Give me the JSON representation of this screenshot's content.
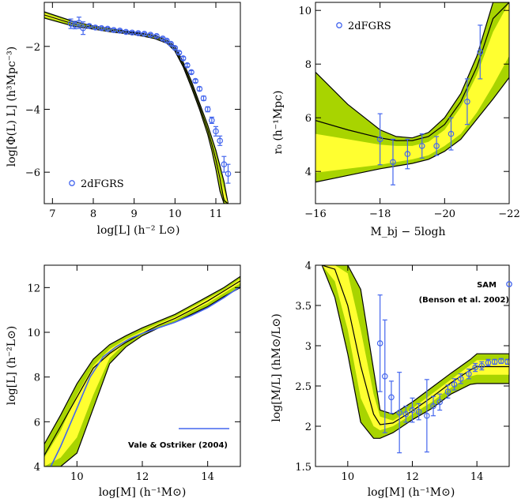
{
  "colors": {
    "outer_band": "#a8d400",
    "inner_band": "#ffff30",
    "line": "#000000",
    "data": "#4466ee"
  },
  "chart_data": [
    {
      "type": "line",
      "id": "lf",
      "title": "",
      "xlabel": "log[L]  (h⁻² L⊙)",
      "ylabel": "log[Φ(L) L]  (h³Mpc⁻³)",
      "xlim": [
        6.8,
        11.6
      ],
      "ylim": [
        -7.0,
        -0.6
      ],
      "xticks": [
        7,
        8,
        9,
        10,
        11
      ],
      "yticks": [
        -6,
        -4,
        -2
      ],
      "legend": {
        "label": "2dFGRS",
        "position": "bottom-left"
      },
      "band_x": [
        6.8,
        7.5,
        8.0,
        8.5,
        9.0,
        9.5,
        9.8,
        10.0,
        10.2,
        10.4,
        10.6,
        10.8,
        10.9,
        11.0,
        11.1,
        11.2,
        11.3
      ],
      "band_outer_upper": [
        -0.9,
        -1.2,
        -1.35,
        -1.45,
        -1.55,
        -1.65,
        -1.8,
        -2.0,
        -2.5,
        -3.1,
        -3.8,
        -4.5,
        -4.9,
        -5.3,
        -5.8,
        -6.3,
        -7.0
      ],
      "band_outer_lower": [
        -1.1,
        -1.35,
        -1.45,
        -1.55,
        -1.62,
        -1.75,
        -1.9,
        -2.15,
        -2.65,
        -3.3,
        -4.0,
        -4.8,
        -5.3,
        -5.9,
        -6.6,
        -7.0,
        -7.0
      ],
      "band_inner_upper": [
        -0.95,
        -1.25,
        -1.38,
        -1.48,
        -1.57,
        -1.68,
        -1.83,
        -2.05,
        -2.55,
        -3.17,
        -3.87,
        -4.6,
        -5.03,
        -5.5,
        -6.07,
        -6.57,
        -7.0
      ],
      "band_inner_lower": [
        -1.05,
        -1.3,
        -1.42,
        -1.52,
        -1.6,
        -1.72,
        -1.87,
        -2.1,
        -2.6,
        -3.23,
        -3.93,
        -4.7,
        -5.17,
        -5.7,
        -6.33,
        -6.8,
        -7.0
      ],
      "model": [
        -1.0,
        -1.28,
        -1.4,
        -1.5,
        -1.58,
        -1.7,
        -1.85,
        -2.08,
        -2.58,
        -3.2,
        -3.9,
        -4.65,
        -5.1,
        -5.6,
        -6.2,
        -6.9,
        -7.0
      ],
      "data_x": [
        7.45,
        7.55,
        7.65,
        7.75,
        7.9,
        8.05,
        8.2,
        8.35,
        8.5,
        8.65,
        8.8,
        8.95,
        9.1,
        9.25,
        9.4,
        9.55,
        9.7,
        9.8,
        9.9,
        10.0,
        10.1,
        10.2,
        10.3,
        10.4,
        10.5,
        10.6,
        10.7,
        10.8,
        10.9,
        11.0,
        11.1,
        11.2,
        11.3
      ],
      "data_y": [
        -1.28,
        -1.32,
        -1.25,
        -1.42,
        -1.35,
        -1.4,
        -1.42,
        -1.44,
        -1.48,
        -1.5,
        -1.54,
        -1.56,
        -1.58,
        -1.6,
        -1.63,
        -1.67,
        -1.75,
        -1.82,
        -1.92,
        -2.05,
        -2.2,
        -2.38,
        -2.6,
        -2.82,
        -3.1,
        -3.35,
        -3.65,
        -4.0,
        -4.35,
        -4.7,
        -5.0,
        -5.75,
        -6.05
      ],
      "data_err": [
        0.15,
        0.12,
        0.18,
        0.2,
        0.05,
        0.05,
        0.04,
        0.04,
        0.04,
        0.04,
        0.04,
        0.04,
        0.04,
        0.04,
        0.04,
        0.04,
        0.04,
        0.04,
        0.04,
        0.04,
        0.04,
        0.05,
        0.05,
        0.05,
        0.05,
        0.06,
        0.07,
        0.08,
        0.1,
        0.15,
        0.15,
        0.25,
        0.3
      ]
    },
    {
      "type": "line",
      "id": "r0",
      "title": "",
      "xlabel": "M_bj − 5logh",
      "ylabel": "r₀  (h⁻¹Mpc)",
      "xlim": [
        -16,
        -22
      ],
      "ylim": [
        2.8,
        10.3
      ],
      "xticks": [
        -16,
        -18,
        -20,
        -22
      ],
      "yticks": [
        4,
        6,
        8,
        10
      ],
      "legend": {
        "label": "2dFGRS",
        "position": "top-left"
      },
      "band_x": [
        -16,
        -17,
        -18,
        -18.5,
        -19,
        -19.5,
        -20,
        -20.5,
        -21,
        -21.5,
        -22
      ],
      "band_outer_upper": [
        7.7,
        6.5,
        5.55,
        5.3,
        5.25,
        5.45,
        6.0,
        6.9,
        8.3,
        10.3,
        10.3
      ],
      "band_outer_lower": [
        3.6,
        3.85,
        4.1,
        4.2,
        4.3,
        4.45,
        4.75,
        5.2,
        5.95,
        6.7,
        7.5
      ],
      "band_inner_upper": [
        5.4,
        5.2,
        5.0,
        4.95,
        4.95,
        5.1,
        5.55,
        6.4,
        7.6,
        9.2,
        10.3
      ],
      "band_inner_lower": [
        3.95,
        4.1,
        4.25,
        4.35,
        4.45,
        4.6,
        4.95,
        5.4,
        6.2,
        7.2,
        8.3
      ],
      "model": [
        5.9,
        5.55,
        5.25,
        5.15,
        5.15,
        5.3,
        5.75,
        6.6,
        7.9,
        9.7,
        10.3
      ],
      "data_x": [
        -18.0,
        -18.4,
        -18.85,
        -19.3,
        -19.75,
        -20.2,
        -20.7,
        -21.1
      ],
      "data_y": [
        5.2,
        4.35,
        4.65,
        4.95,
        4.95,
        5.4,
        6.6,
        8.45
      ],
      "data_err": [
        0.95,
        0.85,
        0.55,
        0.45,
        0.35,
        0.6,
        0.85,
        1.0
      ]
    },
    {
      "type": "line",
      "id": "lm",
      "title": "",
      "xlabel": "log[M]  (h⁻¹M⊙)",
      "ylabel": "log[L]  (h⁻²L⊙)",
      "xlim": [
        9,
        15
      ],
      "ylim": [
        4,
        13
      ],
      "xticks": [
        10,
        12,
        14
      ],
      "yticks": [
        4,
        6,
        8,
        10,
        12
      ],
      "legend": {
        "label": "Vale & Ostriker (2004)",
        "position": "bottom-right"
      },
      "band_x": [
        9,
        9.5,
        10.0,
        10.5,
        11,
        11.5,
        12,
        12.5,
        13,
        13.5,
        14,
        14.5,
        15
      ],
      "band_outer_upper": [
        5.0,
        6.3,
        7.7,
        8.8,
        9.45,
        9.85,
        10.2,
        10.5,
        10.8,
        11.2,
        11.6,
        12.0,
        12.5
      ],
      "band_outer_lower": [
        4.0,
        4.0,
        4.6,
        6.6,
        8.6,
        9.35,
        9.85,
        10.2,
        10.45,
        10.8,
        11.15,
        11.6,
        12.0
      ],
      "band_inner_upper": [
        4.4,
        5.6,
        7.2,
        8.5,
        9.25,
        9.7,
        10.05,
        10.4,
        10.7,
        11.1,
        11.5,
        11.9,
        12.4
      ],
      "band_inner_lower": [
        4.0,
        4.4,
        5.3,
        7.2,
        8.85,
        9.55,
        9.95,
        10.3,
        10.55,
        10.95,
        11.3,
        11.75,
        12.2
      ],
      "model": [
        4.5,
        5.8,
        7.1,
        8.4,
        9.05,
        9.55,
        9.95,
        10.32,
        10.62,
        11.0,
        11.4,
        11.85,
        12.3
      ],
      "ref_x": [
        9.2,
        9.5,
        10.0,
        10.4,
        10.8,
        11.2,
        11.6,
        12.0,
        12.5,
        13.0,
        13.5,
        14.0,
        14.5,
        15.0
      ],
      "ref_y": [
        4.0,
        4.9,
        6.6,
        8.0,
        8.9,
        9.35,
        9.7,
        9.95,
        10.2,
        10.45,
        10.75,
        11.1,
        11.55,
        12.05
      ]
    },
    {
      "type": "line",
      "id": "ml",
      "title": "",
      "xlabel": "log[M]  (h⁻¹M⊙)",
      "ylabel": "log[M/L]  (hM⊙/L⊙)",
      "xlim": [
        9,
        15
      ],
      "ylim": [
        1.5,
        4.0
      ],
      "xticks": [
        10,
        12,
        14
      ],
      "yticks": [
        1.5,
        2,
        2.5,
        3,
        3.5,
        4
      ],
      "legend": {
        "label": "SAM",
        "sublabel": "(Benson et al. 2002)",
        "position": "top-right"
      },
      "band_x": [
        9.2,
        9.6,
        10.0,
        10.4,
        10.8,
        11.0,
        11.4,
        12.0,
        12.6,
        13.2,
        13.8,
        14.0,
        14.5,
        15.0
      ],
      "band_outer_upper": [
        4.0,
        4.0,
        4.0,
        3.7,
        2.7,
        2.2,
        2.15,
        2.3,
        2.48,
        2.66,
        2.83,
        2.9,
        2.9,
        2.9
      ],
      "band_outer_lower": [
        4.0,
        3.6,
        2.9,
        2.05,
        1.85,
        1.85,
        1.92,
        2.08,
        2.22,
        2.4,
        2.52,
        2.53,
        2.53,
        2.53
      ],
      "band_inner_upper": [
        4.0,
        4.0,
        3.9,
        3.2,
        2.4,
        2.12,
        2.07,
        2.22,
        2.4,
        2.58,
        2.76,
        2.82,
        2.82,
        2.82
      ],
      "band_inner_lower": [
        4.0,
        3.8,
        3.2,
        2.35,
        2.0,
        1.95,
        2.0,
        2.15,
        2.3,
        2.48,
        2.62,
        2.64,
        2.64,
        2.64
      ],
      "model": [
        4.0,
        3.95,
        3.5,
        2.75,
        2.15,
        2.02,
        2.04,
        2.19,
        2.36,
        2.54,
        2.7,
        2.74,
        2.74,
        2.74
      ],
      "data_x": [
        11.0,
        11.15,
        11.35,
        11.6,
        11.8,
        12.0,
        12.2,
        12.45,
        12.65,
        12.85,
        13.1,
        13.3,
        13.5,
        13.75,
        13.95,
        14.15,
        14.35,
        14.55,
        14.75,
        14.95
      ],
      "data_y": [
        3.03,
        2.62,
        2.36,
        2.17,
        2.15,
        2.2,
        2.18,
        2.13,
        2.25,
        2.3,
        2.43,
        2.52,
        2.59,
        2.65,
        2.73,
        2.75,
        2.79,
        2.8,
        2.81,
        2.8
      ],
      "data_err": [
        0.6,
        0.7,
        0.2,
        0.5,
        0.1,
        0.15,
        0.1,
        0.45,
        0.12,
        0.1,
        0.08,
        0.07,
        0.06,
        0.06,
        0.05,
        0.05,
        0.04,
        0.03,
        0.03,
        0.03
      ]
    }
  ]
}
